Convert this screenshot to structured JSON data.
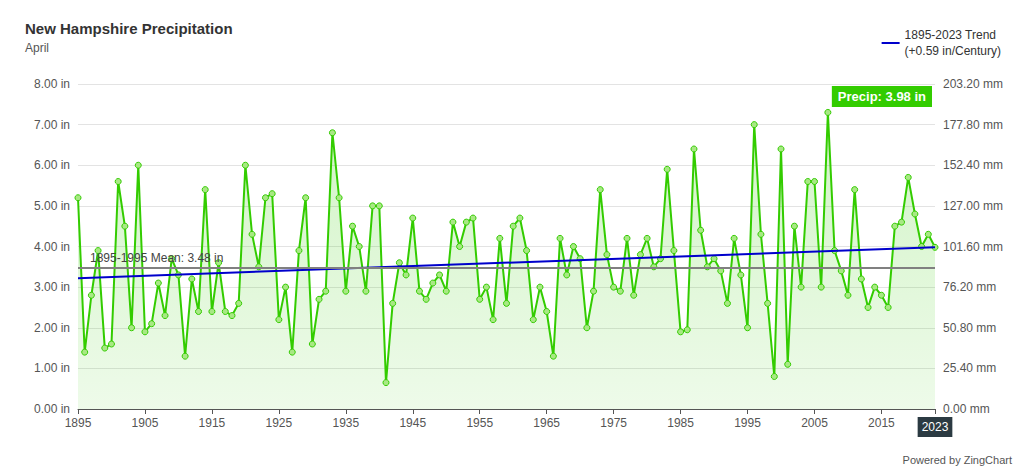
{
  "chart_data": {
    "type": "line",
    "title": "New Hampshire Precipitation",
    "subtitle": "April",
    "x": [
      1895,
      1896,
      1897,
      1898,
      1899,
      1900,
      1901,
      1902,
      1903,
      1904,
      1905,
      1906,
      1907,
      1908,
      1909,
      1910,
      1911,
      1912,
      1913,
      1914,
      1915,
      1916,
      1917,
      1918,
      1919,
      1920,
      1921,
      1922,
      1923,
      1924,
      1925,
      1926,
      1927,
      1928,
      1929,
      1930,
      1931,
      1932,
      1933,
      1934,
      1935,
      1936,
      1937,
      1938,
      1939,
      1940,
      1941,
      1942,
      1943,
      1944,
      1945,
      1946,
      1947,
      1948,
      1949,
      1950,
      1951,
      1952,
      1953,
      1954,
      1955,
      1956,
      1957,
      1958,
      1959,
      1960,
      1961,
      1962,
      1963,
      1964,
      1965,
      1966,
      1967,
      1968,
      1969,
      1970,
      1971,
      1972,
      1973,
      1974,
      1975,
      1976,
      1977,
      1978,
      1979,
      1980,
      1981,
      1982,
      1983,
      1984,
      1985,
      1986,
      1987,
      1988,
      1989,
      1990,
      1991,
      1992,
      1993,
      1994,
      1995,
      1996,
      1997,
      1998,
      1999,
      2000,
      2001,
      2002,
      2003,
      2004,
      2005,
      2006,
      2007,
      2008,
      2009,
      2010,
      2011,
      2012,
      2013,
      2014,
      2015,
      2016,
      2017,
      2018,
      2019,
      2020,
      2021,
      2022,
      2023
    ],
    "series": [
      {
        "name": "Precip",
        "color": "#33cc00",
        "marker": "circle",
        "line_style": "solid",
        "values": [
          5.2,
          1.4,
          2.8,
          3.9,
          1.5,
          1.6,
          5.6,
          4.5,
          2.0,
          6.0,
          1.9,
          2.1,
          3.1,
          2.3,
          3.7,
          3.3,
          1.3,
          3.2,
          2.4,
          5.4,
          2.4,
          3.6,
          2.4,
          2.3,
          2.6,
          6.0,
          4.3,
          3.5,
          5.2,
          5.3,
          2.2,
          3.0,
          1.4,
          3.9,
          5.2,
          1.6,
          2.7,
          2.9,
          6.8,
          5.2,
          2.9,
          4.5,
          4.0,
          2.9,
          5.0,
          5.0,
          0.65,
          2.6,
          3.6,
          3.3,
          4.7,
          2.9,
          2.7,
          3.1,
          3.3,
          2.9,
          4.6,
          4.0,
          4.6,
          4.7,
          2.7,
          3.0,
          2.2,
          4.2,
          2.6,
          4.5,
          4.7,
          3.9,
          2.2,
          3.0,
          2.4,
          1.3,
          4.2,
          3.3,
          4.0,
          3.7,
          2.0,
          2.9,
          5.4,
          3.8,
          3.0,
          2.9,
          4.2,
          2.8,
          3.8,
          4.2,
          3.5,
          3.7,
          5.9,
          3.9,
          1.9,
          1.95,
          6.4,
          4.4,
          3.5,
          3.7,
          3.4,
          2.6,
          4.2,
          3.3,
          2.0,
          7.0,
          4.3,
          2.6,
          0.8,
          6.4,
          1.1,
          4.5,
          3.0,
          5.6,
          5.6,
          3.0,
          7.3,
          3.9,
          3.4,
          2.8,
          5.4,
          3.2,
          2.5,
          3.0,
          2.8,
          2.5,
          4.5,
          4.6,
          5.7,
          4.8,
          4.0,
          4.3,
          3.98
        ]
      }
    ],
    "trend": {
      "label_lines": [
        "1895-2023 Trend",
        "(+0.59 in/Century)"
      ],
      "color": "#0000cc",
      "x": [
        1895,
        2023
      ],
      "values": [
        3.22,
        3.98
      ]
    },
    "reference_line": {
      "value": 3.48,
      "label": "1895-1995 Mean: 3.48 in",
      "color": "#808080"
    },
    "highlight": {
      "x": 2023,
      "value": 3.98,
      "label": "Precip: 3.98 in",
      "color": "#33cc00"
    },
    "credit": "Powered by ZingChart",
    "legend": "top-right",
    "grid": true,
    "xlim": [
      1895,
      2023
    ],
    "xticks": [
      1895,
      1905,
      1915,
      1925,
      1935,
      1945,
      1955,
      1965,
      1975,
      1985,
      1995,
      2005,
      2015,
      2023
    ],
    "ylim": [
      0,
      8
    ],
    "yticks": [
      {
        "value": 0,
        "label": "0.00 in"
      },
      {
        "value": 1,
        "label": "1.00 in"
      },
      {
        "value": 2,
        "label": "2.00 in"
      },
      {
        "value": 3,
        "label": "3.00 in"
      },
      {
        "value": 4,
        "label": "4.00 in"
      },
      {
        "value": 5,
        "label": "5.00 in"
      },
      {
        "value": 6,
        "label": "6.00 in"
      },
      {
        "value": 7,
        "label": "7.00 in"
      },
      {
        "value": 8,
        "label": "8.00 in"
      }
    ],
    "y2lim": [
      0,
      203.2
    ],
    "y2ticks": [
      {
        "value": 0,
        "label": "0.00 mm"
      },
      {
        "value": 25.4,
        "label": "25.40 mm"
      },
      {
        "value": 50.8,
        "label": "50.80 mm"
      },
      {
        "value": 76.2,
        "label": "76.20 mm"
      },
      {
        "value": 101.6,
        "label": "101.60 mm"
      },
      {
        "value": 127,
        "label": "127.00 mm"
      },
      {
        "value": 152.4,
        "label": "152.40 mm"
      },
      {
        "value": 177.8,
        "label": "177.80 mm"
      },
      {
        "value": 203.2,
        "label": "203.20 mm"
      }
    ]
  }
}
